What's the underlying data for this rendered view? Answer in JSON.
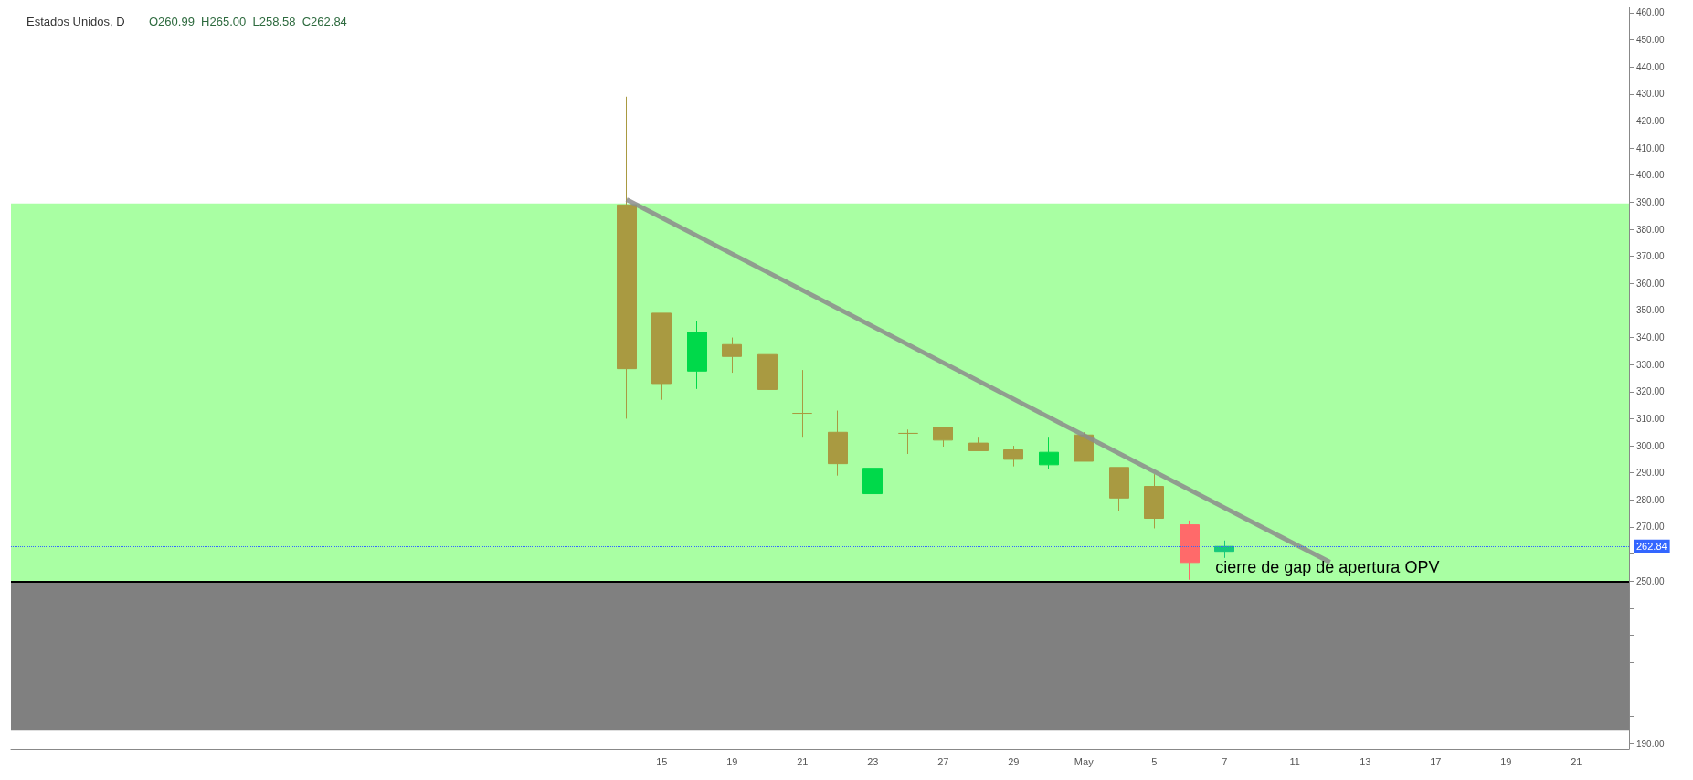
{
  "chart_data": {
    "type": "candlestick",
    "title": "Estados Unidos, D",
    "subtitle": "O260.99  H265.00  L258.58  C262.84",
    "categories": [
      null,
      null,
      null,
      null,
      null,
      null,
      null,
      null,
      null,
      null,
      null,
      null,
      null,
      null,
      null,
      null,
      null,
      null,
      "15",
      null,
      "19",
      null,
      "21",
      null,
      "23",
      null,
      "27",
      null,
      "29",
      null,
      "May",
      null,
      "5",
      null,
      "7",
      null,
      "11",
      null,
      "13",
      null,
      "17",
      null,
      "19",
      null,
      "21",
      null
    ],
    "ohlc": [
      null,
      null,
      null,
      null,
      null,
      null,
      null,
      null,
      null,
      null,
      null,
      null,
      null,
      null,
      null,
      null,
      null,
      [
        389,
        429,
        310,
        328.5
      ],
      [
        349,
        349,
        317,
        323
      ],
      [
        327.6,
        346,
        321,
        342
      ],
      [
        337.4,
        340,
        327,
        333
      ],
      [
        333.7,
        333.7,
        312.5,
        320.8
      ],
      [
        312,
        328,
        303,
        312
      ],
      [
        305,
        313,
        289,
        293.4
      ],
      [
        282.3,
        303,
        282.3,
        291.7
      ],
      [
        304.6,
        306,
        297,
        304.6
      ],
      [
        306.8,
        306.8,
        299.7,
        302.1
      ],
      [
        301,
        303,
        298.2,
        298.2
      ],
      [
        298.5,
        300,
        292.4,
        295
      ],
      [
        293,
        303,
        291.4,
        297.6
      ],
      [
        304,
        305,
        294.3,
        294.3
      ],
      [
        292,
        292,
        276,
        280.7
      ],
      [
        285,
        289.5,
        269.5,
        273.2
      ],
      [
        270.8,
        272.4,
        250.5,
        256.9
      ],
      [
        260.99,
        265.0,
        258.58,
        262.84
      ],
      null,
      null,
      null,
      null,
      null,
      null,
      null,
      null,
      null,
      null,
      null
    ],
    "colors": [
      null,
      null,
      null,
      null,
      null,
      null,
      null,
      null,
      null,
      null,
      null,
      null,
      null,
      null,
      null,
      null,
      null,
      "#a99a41",
      "#a99a41",
      "#00d94a",
      "#a99a41",
      "#a99a41",
      "#a99a41",
      "#a99a41",
      "#00d94a",
      "#a99a41",
      "#a99a41",
      "#a99a41",
      "#a99a41",
      "#00d94a",
      "#a99a41",
      "#a99a41",
      "#a99a41",
      "#ff6a6a",
      "#16c97c",
      null,
      null,
      null,
      null,
      null,
      null,
      null,
      null,
      null,
      null,
      null
    ],
    "series": [
      {
        "type": "line",
        "color": "#8c8c8c",
        "values": [
          null,
          null,
          null,
          null,
          null,
          null,
          null,
          null,
          null,
          null,
          null,
          null,
          null,
          null,
          null,
          null,
          null,
          391,
          null,
          null,
          null,
          null,
          null,
          null,
          null,
          null,
          null,
          null,
          null,
          null,
          null,
          null,
          null,
          null,
          null,
          null,
          null,
          257,
          null,
          null,
          null,
          null,
          null,
          null,
          null,
          null
        ]
      }
    ],
    "ylim": [
      188,
      462
    ],
    "yticks": [
      {
        "value": 190,
        "label": "190.00"
      },
      {
        "value": 200,
        "label": null
      },
      {
        "value": 210,
        "label": null
      },
      {
        "value": 220,
        "label": null
      },
      {
        "value": 230,
        "label": null
      },
      {
        "value": 240,
        "label": null
      },
      {
        "value": 250,
        "label": "250.00"
      },
      {
        "value": 260,
        "label": null
      },
      {
        "value": 270,
        "label": "270.00"
      },
      {
        "value": 280,
        "label": "280.00"
      },
      {
        "value": 290,
        "label": "290.00"
      },
      {
        "value": 300,
        "label": "300.00"
      },
      {
        "value": 310,
        "label": "310.00"
      },
      {
        "value": 320,
        "label": "320.00"
      },
      {
        "value": 330,
        "label": "330.00"
      },
      {
        "value": 340,
        "label": "340.00"
      },
      {
        "value": 350,
        "label": "350.00"
      },
      {
        "value": 360,
        "label": "360.00"
      },
      {
        "value": 370,
        "label": "370.00"
      },
      {
        "value": 380,
        "label": "380.00"
      },
      {
        "value": 390,
        "label": "390.00"
      },
      {
        "value": 400,
        "label": "400.00"
      },
      {
        "value": 410,
        "label": "410.00"
      },
      {
        "value": 420,
        "label": "420.00"
      },
      {
        "value": 430,
        "label": "430.00"
      },
      {
        "value": 440,
        "label": "440.00"
      },
      {
        "value": 450,
        "label": "450.00"
      },
      {
        "value": 460,
        "label": "460.00"
      }
    ],
    "bands": [
      {
        "axis": "y",
        "from": 250,
        "to": 389.5,
        "color": "#a9ffa3"
      },
      {
        "axis": "y",
        "from": 195,
        "to": 250,
        "color": "#808080"
      }
    ],
    "ref_lines": [
      {
        "axis": "y",
        "value": 250,
        "color": "#000000",
        "line_style": "solid"
      },
      {
        "axis": "y",
        "value": 262.84,
        "label": "262.84",
        "color": "#3366ff",
        "line_style": "dotted"
      }
    ],
    "annotations": [
      {
        "text": "cierre de gap de apertura OPV",
        "y": 250
      }
    ],
    "grid": false
  }
}
